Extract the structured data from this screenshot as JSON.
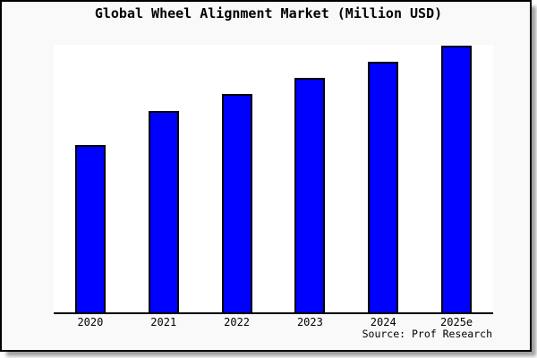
{
  "card": {
    "title": "Global Wheel Alignment Market (Million USD)",
    "source": "Source: Prof Research"
  },
  "colors": {
    "bar_fill": "#0000ff",
    "bar_border": "#000000",
    "figure_background": "#f9f9f9",
    "plot_background": "#ffffff",
    "axis_line": "#000000",
    "title_text": "#000000"
  },
  "chart_data": {
    "type": "bar",
    "title": "Global Wheel Alignment Market (Million USD)",
    "categories": [
      "2020",
      "2021",
      "2022",
      "2023",
      "2024",
      "2025e"
    ],
    "values": [
      187,
      225,
      244,
      262,
      280,
      298
    ],
    "value_units": "relative height (no y-axis scale or value labels shown in figure)",
    "xlabel": "",
    "ylabel": "",
    "ylim": [
      0,
      299
    ],
    "grid": false,
    "legend": false,
    "y_axis_ticks_visible": false,
    "annotation": "Source: Prof Research"
  }
}
